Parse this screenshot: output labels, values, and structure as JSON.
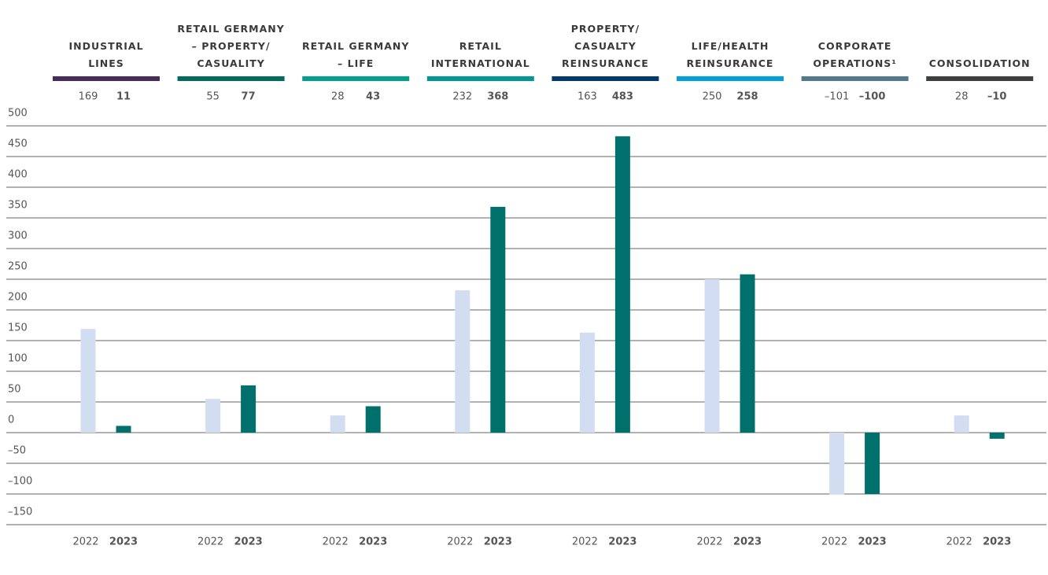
{
  "chart_data": {
    "type": "bar",
    "categories": [
      "INDUSTRIAL LINES",
      "RETAIL GERMANY – PROPERTY/ CASUALITY",
      "RETAIL GERMANY – LIFE",
      "RETAIL INTERNATIONAL",
      "PROPERTY/ CASUALTY REINSURANCE",
      "LIFE/HEALTH REINSURANCE",
      "CORPORATE OPERATIONS¹",
      "CONSOLIDATION"
    ],
    "category_colors": [
      "#4a2a5c",
      "#006b5e",
      "#00a08a",
      "#00979a",
      "#003a70",
      "#00a0dc",
      "#527a8c",
      "#3b3f42"
    ],
    "series": [
      {
        "name": "2022",
        "color": "#d3ddf1",
        "values": [
          169,
          55,
          28,
          232,
          163,
          250,
          -101,
          28
        ],
        "value_labels": [
          "169",
          "55",
          "28",
          "232",
          "163",
          "250",
          "–101",
          "28"
        ]
      },
      {
        "name": "2023",
        "color": "#00706c",
        "values": [
          11,
          77,
          43,
          368,
          483,
          258,
          -100,
          -10
        ],
        "value_labels": [
          "11",
          "77",
          "43",
          "368",
          "483",
          "258",
          "–100",
          "–10"
        ]
      }
    ],
    "ylim": [
      -150,
      500
    ],
    "yticks": [
      500,
      450,
      400,
      350,
      300,
      250,
      200,
      150,
      100,
      50,
      0,
      {
        "value": -50,
        "label": "–50"
      },
      {
        "value": -100,
        "label": "–100"
      },
      {
        "value": -150,
        "label": "–150"
      }
    ],
    "grid": true
  }
}
